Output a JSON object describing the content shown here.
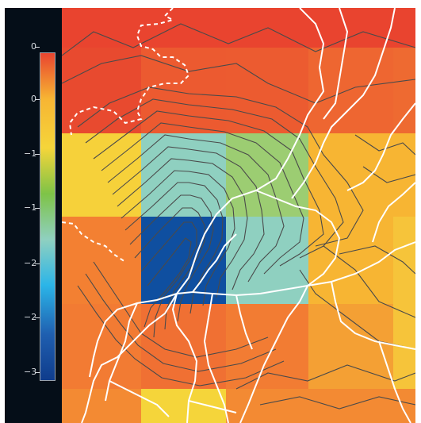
{
  "colorbar": {
    "ticks": [
      "0",
      "0",
      "−1",
      "−1",
      "−2",
      "−2",
      "−3"
    ],
    "colors": [
      "#e9442f",
      "#f7b533",
      "#f5d53a",
      "#7ec347",
      "#8fd0c0",
      "#2bb5e8",
      "#1f5fb0",
      "#0f3c8c"
    ]
  },
  "map": {
    "grid_rows": [
      [
        "#e9442f",
        "#e9442f",
        "#e9442f",
        "#e9442f",
        "#e9442f"
      ],
      [
        "#e84a2f",
        "#ec5a30",
        "#ec5b30",
        "#ee6631",
        "#ee6a31"
      ],
      [
        "#f6d13a",
        "#8fd0c0",
        "#9ccd72",
        "#f7b533",
        "#f7b533"
      ],
      [
        "#f38032",
        "#0f4fa0",
        "#8fd0c0",
        "#f7b533",
        "#f6c43a"
      ],
      [
        "#f27b33",
        "#f07033",
        "#f27c33",
        "#f4a034",
        "#f6c43a"
      ]
    ],
    "boundary_color": "#ffffff",
    "contour_color": "#4a4a4a"
  }
}
